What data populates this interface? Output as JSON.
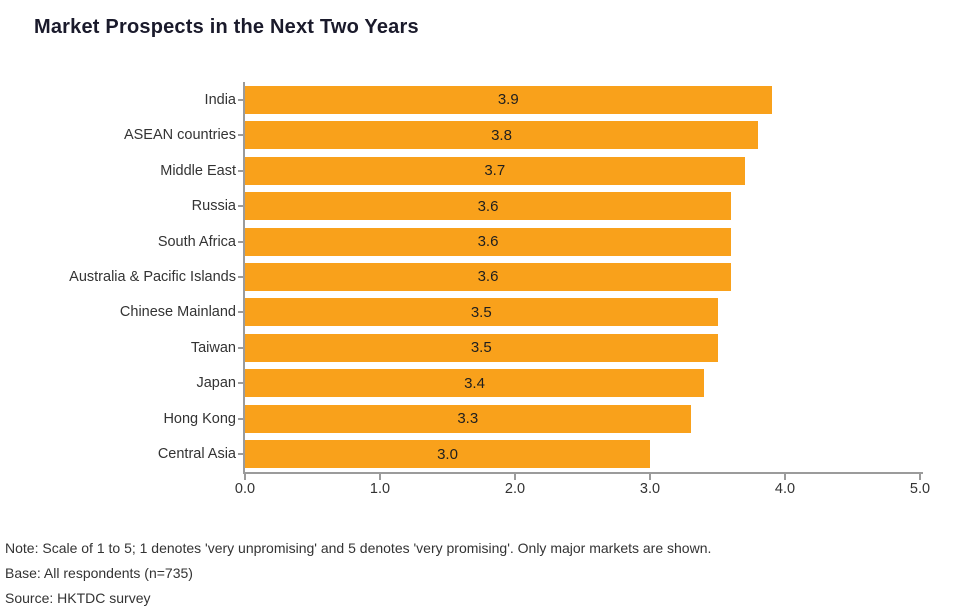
{
  "title": "Market Prospects in the Next Two Years",
  "chart_data": {
    "type": "bar",
    "orientation": "horizontal",
    "title": "Market Prospects in the Next Two Years",
    "categories": [
      "India",
      "ASEAN countries",
      "Middle East",
      "Russia",
      "South Africa",
      "Australia & Pacific Islands",
      "Chinese Mainland",
      "Taiwan",
      "Japan",
      "Hong Kong",
      "Central Asia"
    ],
    "values": [
      3.9,
      3.8,
      3.7,
      3.6,
      3.6,
      3.6,
      3.5,
      3.5,
      3.4,
      3.3,
      3.0
    ],
    "xlabel": "",
    "ylabel": "",
    "xlim": [
      0,
      5
    ],
    "x_ticks": [
      "0.0",
      "1.0",
      "2.0",
      "3.0",
      "4.0",
      "5.0"
    ],
    "grid": false,
    "legend": "none",
    "value_labels_position": "center-inside",
    "bar_color": "#F9A11B",
    "axis_color": "#9B9B9B",
    "value_label_color": "#1F1F1F"
  },
  "notes": {
    "note": "Note: Scale of 1 to 5; 1 denotes 'very unpromising' and 5 denotes 'very promising'. Only major markets are shown.",
    "base": "Base: All respondents (n=735)",
    "source": "Source: HKTDC survey"
  }
}
